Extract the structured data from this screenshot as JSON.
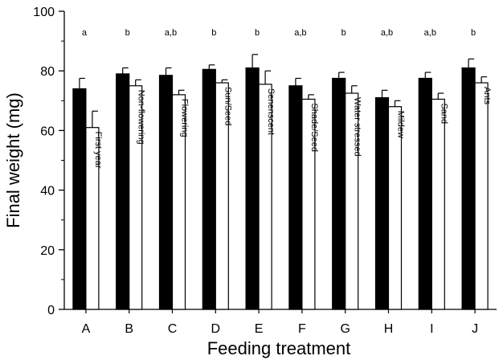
{
  "chart_data": {
    "type": "bar",
    "title": "",
    "xlabel": "Feeding treatment",
    "ylabel": "Final weight (mg)",
    "ylim": [
      0,
      100
    ],
    "yticks": [
      0,
      20,
      40,
      60,
      80,
      100
    ],
    "grid": false,
    "categories": [
      "A",
      "B",
      "C",
      "D",
      "E",
      "F",
      "G",
      "H",
      "I",
      "J"
    ],
    "bar_labels": [
      "First year",
      "Non-flowering",
      "Flowering",
      "Sun/Seed",
      "Senenscent",
      "Shade/Seed",
      "Water stressed",
      "Mildew",
      "Sand",
      "Ants"
    ],
    "significance": [
      "a",
      "b",
      "a,b",
      "b",
      "b",
      "a,b",
      "b",
      "a,b",
      "a,b",
      "b"
    ],
    "series": [
      {
        "color": "#000000",
        "values": [
          74,
          79,
          78.5,
          80.5,
          81,
          75,
          77.5,
          71,
          77.5,
          81
        ],
        "errors": [
          3.5,
          2,
          2.5,
          1.5,
          4.5,
          2.5,
          2,
          2.5,
          2,
          3
        ]
      },
      {
        "color": "#ffffff",
        "values": [
          61,
          75,
          72,
          76,
          75.5,
          70.5,
          72.5,
          68,
          70.5,
          76
        ],
        "errors": [
          5.5,
          2,
          1.5,
          1,
          4.5,
          1.5,
          2.5,
          2,
          2,
          2
        ]
      }
    ]
  }
}
